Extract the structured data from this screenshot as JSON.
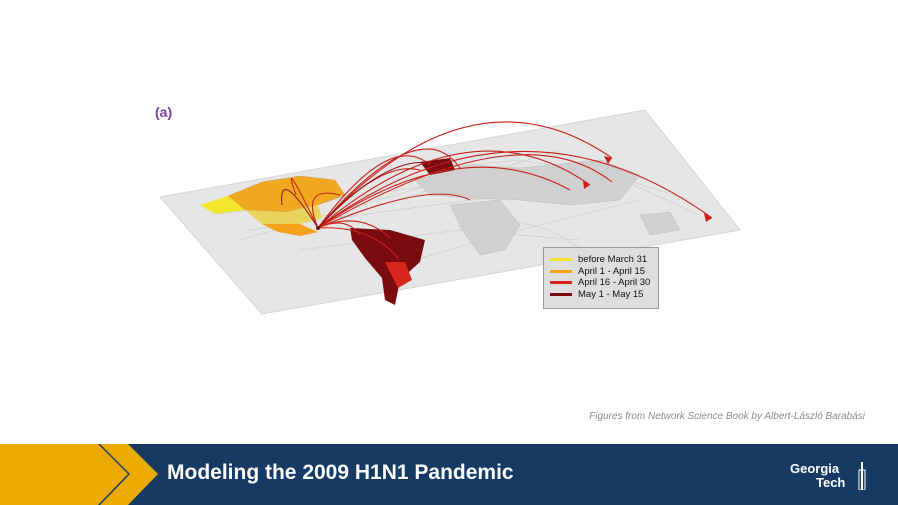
{
  "slide": {
    "panel_label": "(a)",
    "caption": "Figures from Network Science Book by Albert-László Barabási"
  },
  "legend": {
    "items": [
      {
        "label": "before March 31",
        "color": "#f2e52c"
      },
      {
        "label": "April 1 - April 15",
        "color": "#f4a21c"
      },
      {
        "label": "April 16 - April 30",
        "color": "#d8261c"
      },
      {
        "label": "May 1 - May 15",
        "color": "#7a0b0f"
      }
    ]
  },
  "footer": {
    "title": "Modeling the 2009 H1N1 Pandemic",
    "logo_line1": "Georgia",
    "logo_line2": "Tech",
    "background": "#153a64",
    "accent": "#eaaa00"
  }
}
